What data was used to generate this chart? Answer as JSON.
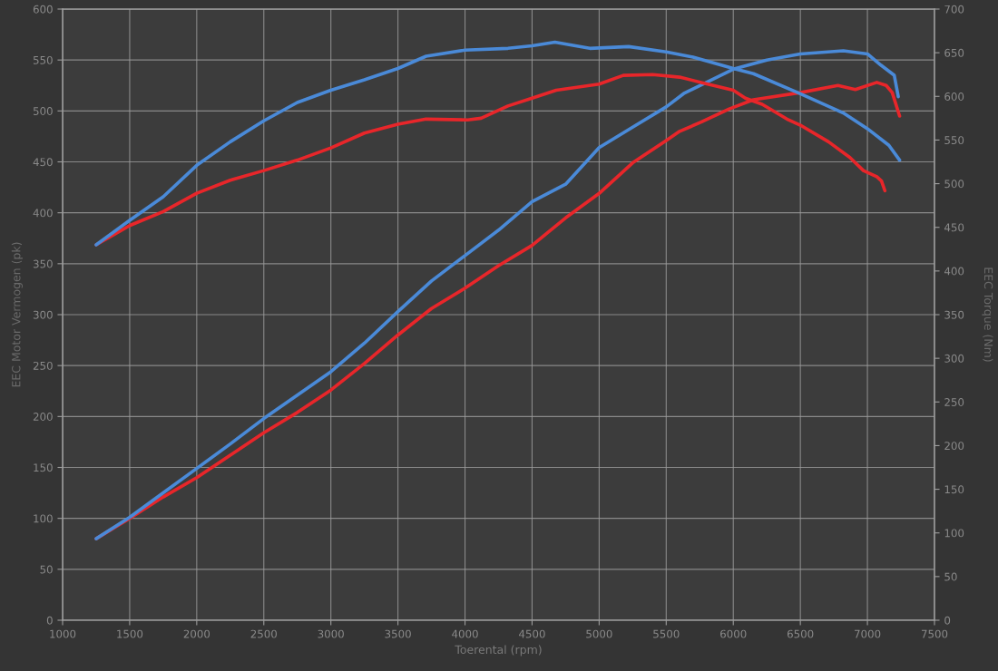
{
  "chart_data": {
    "type": "line",
    "xlabel": "Toerental (rpm)",
    "ylabel": "EEC Motor Vermogen (pk)",
    "y2label": "EEC Torque (Nm)",
    "xlim": [
      1000,
      7500
    ],
    "xticks": [
      1000,
      1500,
      2000,
      2500,
      3000,
      3500,
      4000,
      4500,
      5000,
      5500,
      6000,
      6500,
      7000,
      7500
    ],
    "ylim": [
      0,
      600
    ],
    "yticks": [
      0,
      50,
      100,
      150,
      200,
      250,
      300,
      350,
      400,
      450,
      500,
      550,
      600
    ],
    "y2lim": [
      0,
      700
    ],
    "y2ticks": [
      0,
      50,
      100,
      150,
      200,
      250,
      300,
      350,
      400,
      450,
      500,
      550,
      600,
      650,
      700
    ],
    "grid": true,
    "line_style": "solid",
    "series": [
      {
        "color": "#e8262a",
        "axis": "y",
        "x": [
          1250,
          1500,
          1750,
          2000,
          2250,
          2500,
          2750,
          3000,
          3250,
          3500,
          3750,
          4000,
          4250,
          4500,
          4750,
          5000,
          5250,
          5500,
          5600,
          5760,
          5970,
          6150,
          6500,
          6780,
          6910,
          7070,
          7140,
          7185,
          7240
        ],
        "values": [
          80,
          100,
          121,
          140,
          162,
          184,
          204,
          226,
          252,
          280,
          306,
          326,
          348,
          368,
          395,
          419,
          449,
          471,
          480,
          489,
          502,
          511,
          518,
          525,
          521,
          528,
          525,
          518,
          495
        ]
      },
      {
        "color": "#4a8ad8",
        "axis": "y",
        "x": [
          1250,
          1500,
          1750,
          2000,
          2250,
          2500,
          2750,
          3000,
          3250,
          3500,
          3750,
          4000,
          4250,
          4500,
          4750,
          5000,
          5250,
          5500,
          5630,
          6000,
          6250,
          6500,
          6820,
          7000,
          7100,
          7200,
          7230
        ],
        "values": [
          80,
          101,
          125,
          149,
          173,
          198,
          221,
          244,
          272,
          303,
          333,
          358,
          383,
          411,
          428,
          464,
          484,
          504,
          517,
          541,
          550,
          556,
          559,
          556,
          545,
          535,
          514
        ]
      },
      {
        "color": "#e8262a",
        "axis": "y2",
        "x": [
          1250,
          1500,
          1750,
          2000,
          2250,
          2500,
          2750,
          3000,
          3250,
          3500,
          3710,
          4020,
          4120,
          4320,
          4500,
          4680,
          5000,
          5180,
          5400,
          5600,
          5760,
          6000,
          6090,
          6215,
          6400,
          6500,
          6710,
          6870,
          6970,
          7070,
          7105,
          7130
        ],
        "values": [
          430,
          452,
          468,
          489,
          504,
          515,
          527,
          541,
          558,
          568,
          574,
          573,
          575,
          589,
          598,
          607,
          614,
          624,
          625,
          622,
          616,
          607,
          598,
          591,
          574,
          567,
          548,
          530,
          515,
          508,
          503,
          492
        ]
      },
      {
        "color": "#4a8ad8",
        "axis": "y2",
        "x": [
          1250,
          1500,
          1750,
          2000,
          2250,
          2500,
          2750,
          3000,
          3250,
          3500,
          3710,
          4000,
          4320,
          4500,
          4670,
          4930,
          5220,
          5500,
          5700,
          6000,
          6150,
          6500,
          6820,
          7000,
          7160,
          7240
        ],
        "values": [
          430,
          458,
          485,
          521,
          548,
          572,
          593,
          607,
          619,
          632,
          646,
          653,
          655,
          658,
          662,
          655,
          657,
          651,
          645,
          632,
          626,
          603,
          581,
          563,
          544,
          527
        ]
      }
    ]
  }
}
